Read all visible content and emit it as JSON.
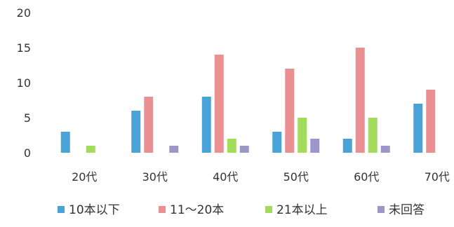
{
  "chart_data": {
    "type": "bar",
    "categories": [
      "20代",
      "30代",
      "40代",
      "50代",
      "60代",
      "70代"
    ],
    "series": [
      {
        "name": "10本以下",
        "color": "#4aa3d6",
        "values": [
          3,
          6,
          8,
          3,
          2,
          7
        ]
      },
      {
        "name": "11～20本",
        "color": "#ea8f92",
        "values": [
          0,
          8,
          14,
          12,
          15,
          9
        ]
      },
      {
        "name": "21本以上",
        "color": "#a3dc5c",
        "values": [
          1,
          0,
          2,
          5,
          5,
          0
        ]
      },
      {
        "name": "未回答",
        "color": "#9d97c9",
        "values": [
          0,
          1,
          1,
          2,
          1,
          0
        ]
      }
    ],
    "y_ticks": [
      "0",
      "5",
      "10",
      "15",
      "20"
    ],
    "ylim": [
      0,
      20
    ],
    "grid": false,
    "legend_position": "bottom",
    "title": "",
    "xlabel": "",
    "ylabel": ""
  }
}
